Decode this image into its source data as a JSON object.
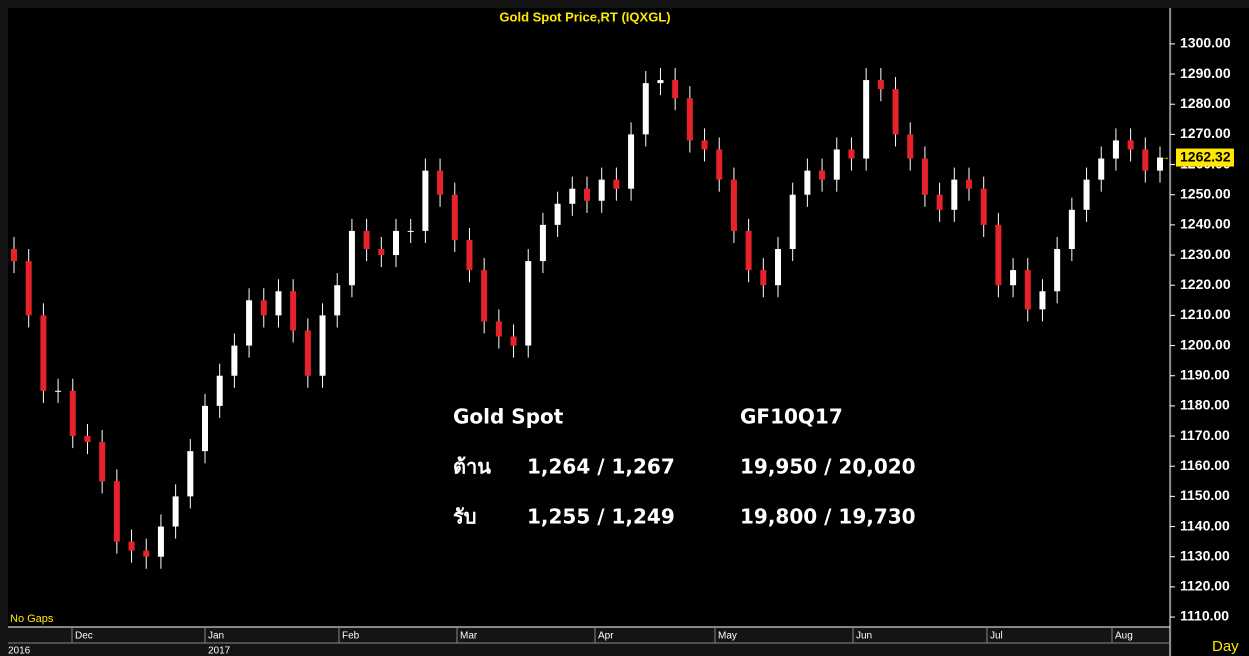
{
  "chart_data": {
    "type": "candlestick",
    "title": "Gold Spot Price,RT (IQXGL)",
    "up_color": "#ffffff",
    "down_color": "#e8222a",
    "open": [
      1232,
      1228,
      1210,
      1185,
      1185,
      1170,
      1168,
      1155,
      1135,
      1132,
      1130,
      1140,
      1150,
      1165,
      1180,
      1190,
      1200,
      1215,
      1210,
      1218,
      1205,
      1190,
      1210,
      1220,
      1238,
      1232,
      1230,
      1238,
      1238,
      1258,
      1250,
      1235,
      1225,
      1208,
      1203,
      1200,
      1228,
      1240,
      1247,
      1252,
      1248,
      1255,
      1252,
      1270,
      1287,
      1288,
      1282,
      1268,
      1265,
      1255,
      1238,
      1225,
      1220,
      1232,
      1250,
      1258,
      1255,
      1265,
      1262,
      1288,
      1285,
      1270,
      1262,
      1250,
      1245,
      1255,
      1252,
      1240,
      1220,
      1225,
      1212,
      1218,
      1232,
      1245,
      1255,
      1262,
      1268,
      1265,
      1258
    ],
    "high": [
      1236,
      1232,
      1214,
      1189,
      1189,
      1174,
      1172,
      1159,
      1139,
      1136,
      1144,
      1154,
      1169,
      1184,
      1194,
      1204,
      1219,
      1219,
      1222,
      1222,
      1209,
      1214,
      1224,
      1242,
      1242,
      1236,
      1242,
      1242,
      1262,
      1262,
      1254,
      1239,
      1229,
      1212,
      1207,
      1232,
      1244,
      1251,
      1256,
      1256,
      1259,
      1259,
      1274,
      1291,
      1292,
      1292,
      1286,
      1272,
      1269,
      1259,
      1242,
      1229,
      1236,
      1254,
      1262,
      1262,
      1269,
      1269,
      1292,
      1292,
      1289,
      1274,
      1266,
      1254,
      1259,
      1259,
      1256,
      1244,
      1229,
      1229,
      1222,
      1236,
      1249,
      1259,
      1266,
      1272,
      1272,
      1269,
      1266
    ],
    "low": [
      1224,
      1206,
      1181,
      1181,
      1166,
      1164,
      1151,
      1131,
      1128,
      1126,
      1126,
      1136,
      1146,
      1161,
      1176,
      1186,
      1196,
      1206,
      1206,
      1201,
      1186,
      1186,
      1206,
      1216,
      1228,
      1226,
      1226,
      1234,
      1234,
      1246,
      1231,
      1221,
      1204,
      1199,
      1196,
      1196,
      1224,
      1236,
      1243,
      1244,
      1244,
      1248,
      1248,
      1266,
      1283,
      1278,
      1264,
      1261,
      1251,
      1234,
      1221,
      1216,
      1216,
      1228,
      1246,
      1251,
      1251,
      1258,
      1258,
      1281,
      1266,
      1258,
      1246,
      1241,
      1241,
      1248,
      1236,
      1216,
      1216,
      1208,
      1208,
      1214,
      1228,
      1241,
      1251,
      1258,
      1261,
      1254,
      1254
    ],
    "close": [
      1228,
      1210,
      1185,
      1185,
      1170,
      1168,
      1155,
      1135,
      1132,
      1130,
      1140,
      1150,
      1165,
      1180,
      1190,
      1200,
      1215,
      1210,
      1218,
      1205,
      1190,
      1210,
      1220,
      1238,
      1232,
      1230,
      1238,
      1238,
      1258,
      1250,
      1235,
      1225,
      1208,
      1203,
      1200,
      1228,
      1240,
      1247,
      1252,
      1248,
      1255,
      1252,
      1270,
      1287,
      1288,
      1282,
      1268,
      1265,
      1255,
      1238,
      1225,
      1220,
      1232,
      1250,
      1258,
      1255,
      1265,
      1262,
      1288,
      1285,
      1270,
      1262,
      1250,
      1245,
      1255,
      1252,
      1240,
      1220,
      1225,
      1212,
      1218,
      1232,
      1245,
      1255,
      1262,
      1268,
      1265,
      1258,
      1262.32
    ],
    "ylim": [
      1106.7,
      1311.9
    ],
    "yticks": [
      {
        "value": 1110,
        "label": "1110.00"
      },
      {
        "value": 1120,
        "label": "1120.00"
      },
      {
        "value": 1130,
        "label": "1130.00"
      },
      {
        "value": 1140,
        "label": "1140.00"
      },
      {
        "value": 1150,
        "label": "1150.00"
      },
      {
        "value": 1160,
        "label": "1160.00"
      },
      {
        "value": 1170,
        "label": "1170.00"
      },
      {
        "value": 1180,
        "label": "1180.00"
      },
      {
        "value": 1190,
        "label": "1190.00"
      },
      {
        "value": 1200,
        "label": "1200.00"
      },
      {
        "value": 1210,
        "label": "1210.00"
      },
      {
        "value": 1220,
        "label": "1220.00"
      },
      {
        "value": 1230,
        "label": "1230.00"
      },
      {
        "value": 1240,
        "label": "1240.00"
      },
      {
        "value": 1250,
        "label": "1250.00"
      },
      {
        "value": 1260,
        "label": "1260.00"
      },
      {
        "value": 1270,
        "label": "1270.00"
      },
      {
        "value": 1280,
        "label": "1280.00"
      },
      {
        "value": 1290,
        "label": "1290.00"
      },
      {
        "value": 1300,
        "label": "1300.00"
      }
    ],
    "months": [
      "Dec",
      "Jan",
      "Feb",
      "Mar",
      "Apr",
      "May",
      "Jun",
      "Jul",
      "Aug"
    ],
    "years": [
      "2016",
      "2017"
    ],
    "gap_note": "No Gaps",
    "period": "Day",
    "annotations": {
      "headers": [
        "Gold Spot",
        "GF10Q17"
      ],
      "rows": [
        [
          "ต้าน",
          "1,264 / 1,267",
          "19,950 / 20,020"
        ],
        [
          "รับ",
          "1,255 / 1,249",
          "19,800 / 19,730"
        ]
      ]
    }
  }
}
